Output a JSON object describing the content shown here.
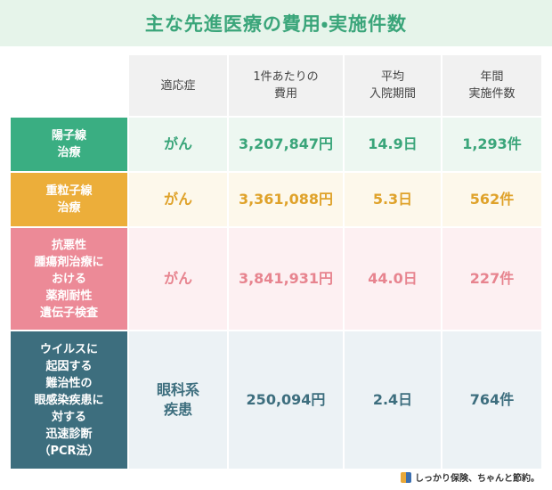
{
  "title": "主な先進医療の費用・実施件数",
  "table": {
    "header": [
      [
        "適応症"
      ],
      [
        "1件あたりの",
        "費用"
      ],
      [
        "平均",
        "入院期間"
      ],
      [
        "年間",
        "実施件数"
      ]
    ],
    "rows": [
      {
        "label": [
          "陽子線",
          "治療"
        ],
        "cells": [
          [
            "がん"
          ],
          [
            "3,207,847円"
          ],
          [
            "14.9日"
          ],
          [
            "1,293件"
          ]
        ]
      },
      {
        "label": [
          "重粒子線",
          "治療"
        ],
        "cells": [
          [
            "がん"
          ],
          [
            "3,361,088円"
          ],
          [
            "5.3日"
          ],
          [
            "562件"
          ]
        ]
      },
      {
        "label": [
          "抗悪性",
          "腫瘍剤治療に",
          "おける",
          "薬剤耐性",
          "遺伝子検査"
        ],
        "cells": [
          [
            "がん"
          ],
          [
            "3,841,931円"
          ],
          [
            "44.0日"
          ],
          [
            "227件"
          ]
        ]
      },
      {
        "label": [
          "ウイルスに",
          "起因する",
          "難治性の",
          "眼感染疾患に",
          "対する",
          "迅速診断",
          "（PCR法）"
        ],
        "cells": [
          [
            "眼科系",
            "疾患"
          ],
          [
            "250,094円"
          ],
          [
            "2.4日"
          ],
          [
            "764件"
          ]
        ]
      }
    ]
  },
  "logo": "しっかり保険、ちゃんと節約。"
}
